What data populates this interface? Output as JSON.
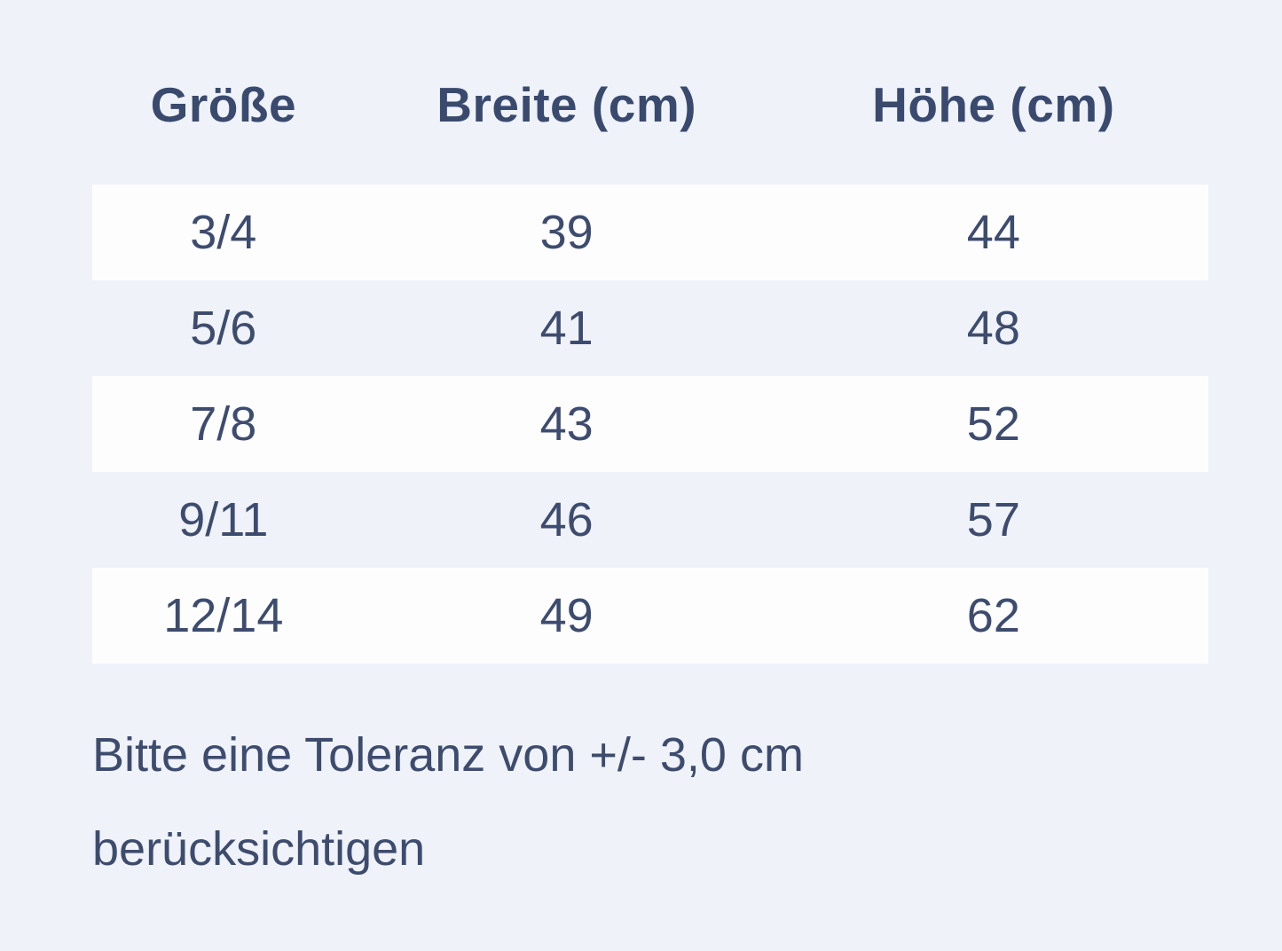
{
  "page": {
    "background_color": "#eff2f8",
    "row_highlight_color": "#fdfdfe",
    "text_color": "#3d4c6e"
  },
  "table": {
    "headers": [
      "Größe",
      "Breite (cm)",
      "Höhe (cm)"
    ],
    "rows": [
      [
        "3/4",
        "39",
        "44"
      ],
      [
        "5/6",
        "41",
        "48"
      ],
      [
        "7/8",
        "43",
        "52"
      ],
      [
        "9/11",
        "46",
        "57"
      ],
      [
        "12/14",
        "49",
        "62"
      ]
    ]
  },
  "note": {
    "line1": "Bitte eine Toleranz von +/- 3,0 cm",
    "line2": "berücksichtigen"
  },
  "chart_data": {
    "type": "table",
    "title": "",
    "columns": [
      "Größe",
      "Breite (cm)",
      "Höhe (cm)"
    ],
    "rows": [
      {
        "groesse": "3/4",
        "breite_cm": 39,
        "hoehe_cm": 44
      },
      {
        "groesse": "5/6",
        "breite_cm": 41,
        "hoehe_cm": 48
      },
      {
        "groesse": "7/8",
        "breite_cm": 43,
        "hoehe_cm": 52
      },
      {
        "groesse": "9/11",
        "breite_cm": 46,
        "hoehe_cm": 57
      },
      {
        "groesse": "12/14",
        "breite_cm": 49,
        "hoehe_cm": 62
      }
    ],
    "annotations": [
      "Bitte eine Toleranz von +/- 3,0 cm berücksichtigen"
    ],
    "layout_hints": {
      "zebra_striping": "odd data rows white on light blue page background",
      "alignment": "all cells center-aligned, note left-aligned"
    }
  }
}
